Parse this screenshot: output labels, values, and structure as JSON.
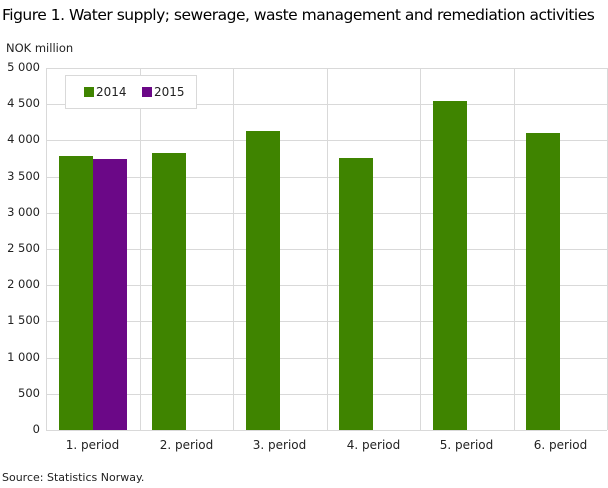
{
  "title": "Figure 1. Water supply; sewerage, waste management and remediation activities",
  "unit_label": "NOK million",
  "source": "Source: Statistics Norway.",
  "colors": {
    "2014": "#3f8400",
    "2015": "#6b0887",
    "grid": "#d9d9d9"
  },
  "legend": [
    {
      "label": "2014",
      "color": "#3f8400"
    },
    {
      "label": "2015",
      "color": "#6b0887"
    }
  ],
  "y_ticks": [
    "5 000",
    "4 500",
    "4 000",
    "3 500",
    "3 000",
    "2 500",
    "2 000",
    "1 500",
    "1 000",
    "500",
    "0"
  ],
  "x_ticks": [
    "1. period",
    "2. period",
    "3. period",
    "4. period",
    "5. period",
    "6. period"
  ],
  "chart_data": {
    "type": "bar",
    "title": "Figure 1. Water supply; sewerage, waste management and remediation activities",
    "xlabel": "",
    "ylabel": "NOK million",
    "categories": [
      "1. period",
      "2. period",
      "3. period",
      "4. period",
      "5. period",
      "6. period"
    ],
    "series": [
      {
        "name": "2014",
        "color": "#3f8400",
        "values": [
          3785,
          3826,
          4130,
          3757,
          4544,
          4102
        ]
      },
      {
        "name": "2015",
        "color": "#6b0887",
        "values": [
          3743,
          null,
          null,
          null,
          null,
          null
        ]
      }
    ],
    "ylim": [
      0,
      5000
    ],
    "y_tick_step": 500,
    "grid": true,
    "legend_position": "top-left inside"
  }
}
